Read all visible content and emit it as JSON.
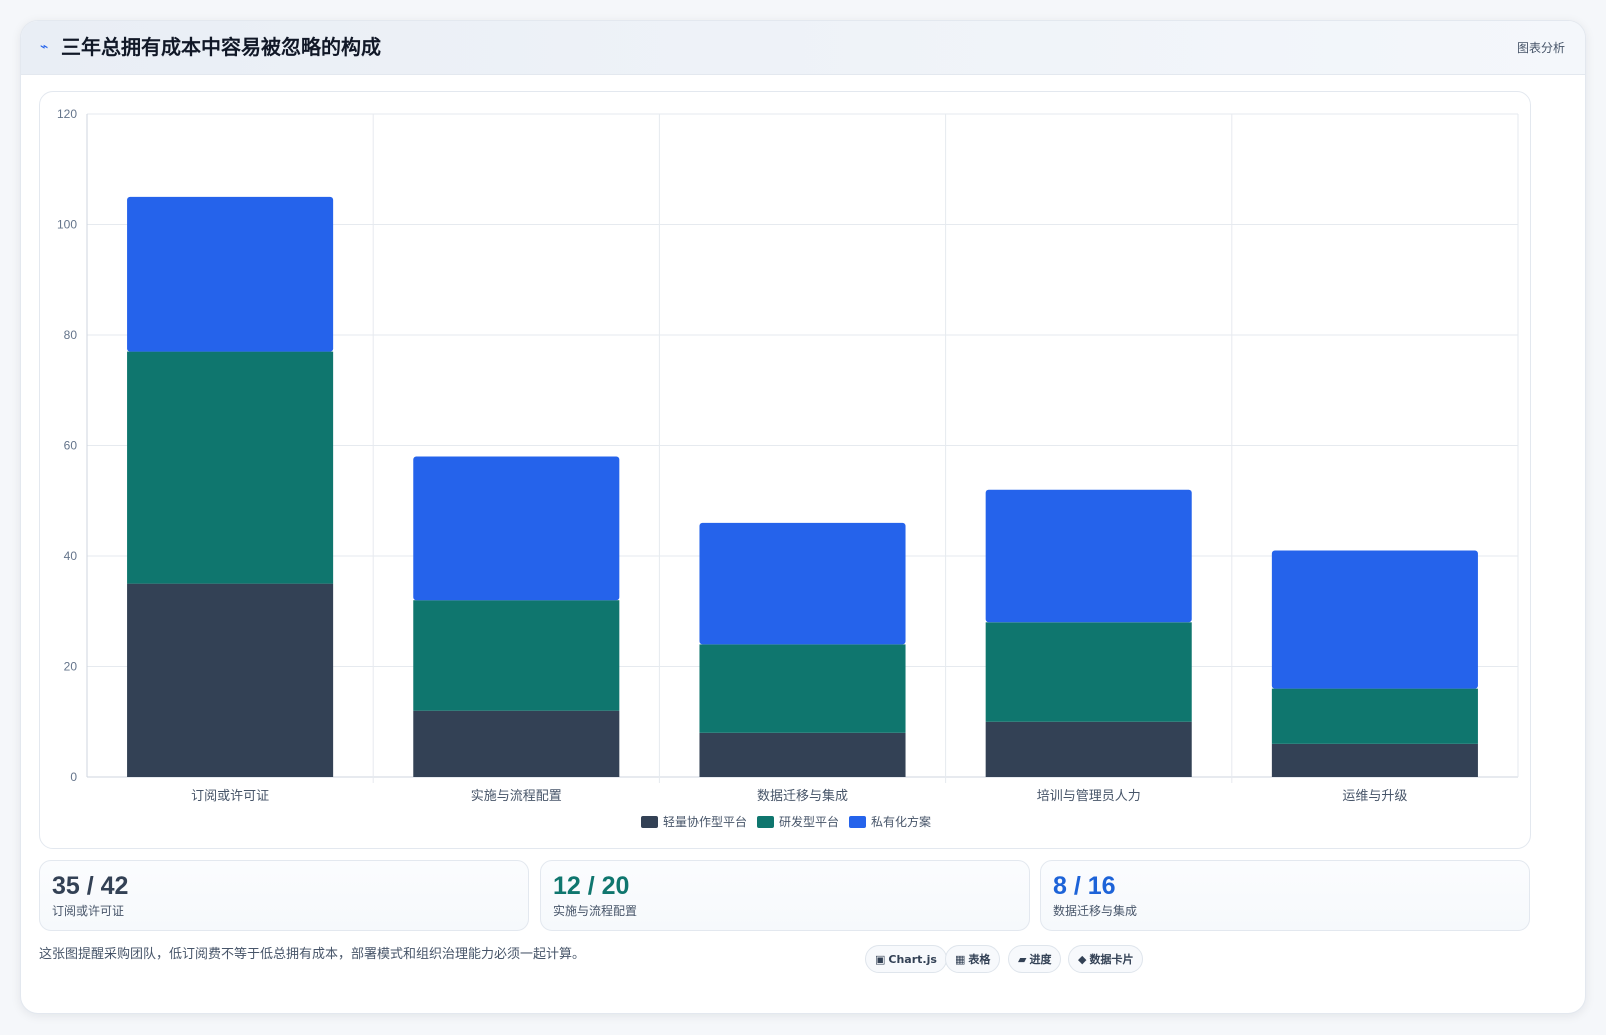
{
  "header": {
    "title": "三年总拥有成本中容易被忽略的构成",
    "tag": "图表分析",
    "icon": "activity-icon"
  },
  "chart_data": {
    "type": "bar",
    "stacked": true,
    "categories": [
      "订阅或许可证",
      "实施与流程配置",
      "数据迁移与集成",
      "培训与管理员人力",
      "运维与升级"
    ],
    "series": [
      {
        "name": "轻量协作型平台",
        "color": "#334155",
        "values": [
          35,
          12,
          8,
          10,
          6
        ]
      },
      {
        "name": "研发型平台",
        "color": "#0f766e",
        "values": [
          42,
          20,
          16,
          18,
          10
        ]
      },
      {
        "name": "私有化方案",
        "color": "#2563eb",
        "values": [
          28,
          26,
          22,
          24,
          25
        ]
      }
    ],
    "ylim": [
      0,
      120
    ],
    "yticks": [
      0,
      20,
      40,
      60,
      80,
      100,
      120
    ],
    "grid": true,
    "legend": "bottom"
  },
  "stats": [
    {
      "value": "35 / 42",
      "label": "订阅或许可证",
      "color": "#334155"
    },
    {
      "value": "12 / 20",
      "label": "实施与流程配置",
      "color": "#0f766e"
    },
    {
      "value": "8 / 16",
      "label": "数据迁移与集成",
      "color": "#1d63d8"
    }
  ],
  "footer": {
    "note": "这张图提醒采购团队，低订阅费不等于低总拥有成本，部署模式和组织治理能力必须一起计算。",
    "chips": [
      {
        "icon": "▣",
        "label": "Chart.js"
      },
      {
        "icon": "▦",
        "label": "表格"
      },
      {
        "icon": "▰",
        "label": "进度"
      },
      {
        "icon": "◆",
        "label": "数据卡片"
      }
    ]
  }
}
